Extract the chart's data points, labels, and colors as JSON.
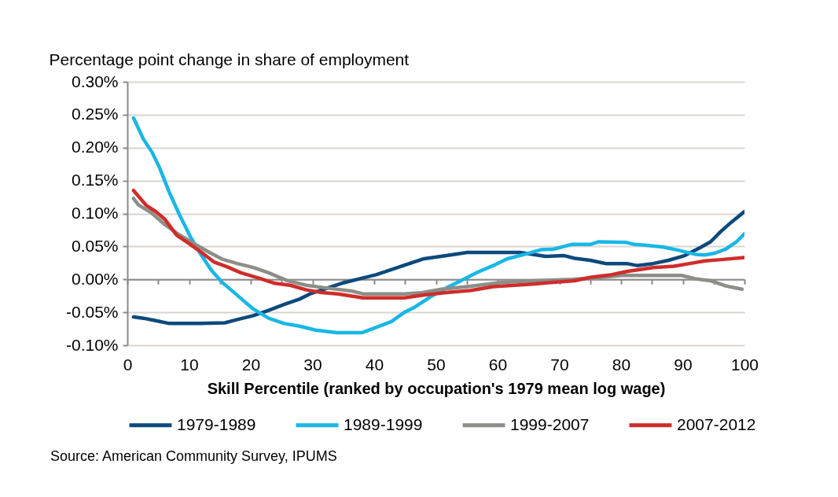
{
  "chart_data": {
    "type": "line",
    "ylabel": "Percentage point change in share of employment",
    "xlabel": "Skill Percentile (ranked by occupation's 1979 mean log wage)",
    "annotations": [
      "Source: American Community Survey, IPUMS"
    ],
    "xlim": [
      0,
      100
    ],
    "xticks": [
      0,
      {
        "value": 5,
        "label": null
      },
      10,
      {
        "value": 15,
        "label": null
      },
      20,
      {
        "value": 25,
        "label": null
      },
      30,
      {
        "value": 35,
        "label": null
      },
      40,
      {
        "value": 45,
        "label": null
      },
      50,
      {
        "value": 55,
        "label": null
      },
      60,
      {
        "value": 65,
        "label": null
      },
      70,
      {
        "value": 75,
        "label": null
      },
      80,
      {
        "value": 85,
        "label": null
      },
      90,
      {
        "value": 95,
        "label": null
      },
      100
    ],
    "ylim": [
      -0.1,
      0.3
    ],
    "yticks": [
      {
        "value": -0.1,
        "label": "-0.10%"
      },
      {
        "value": -0.05,
        "label": "-0.05%"
      },
      {
        "value": 0,
        "label": "0.00%"
      },
      {
        "value": 0.05,
        "label": "0.05%"
      },
      {
        "value": 0.1,
        "label": "0.10%"
      },
      {
        "value": 0.15,
        "label": "0.15%"
      },
      {
        "value": 0.2,
        "label": "0.20%"
      },
      {
        "value": 0.25,
        "label": "0.25%"
      },
      {
        "value": 0.3,
        "label": "0.30%"
      }
    ],
    "grid": "y",
    "legend": "bottom",
    "line_style": "solid",
    "series": [
      {
        "name": "1979-1989",
        "color": "#0d4a7c",
        "x": [
          1,
          2.6,
          4.3,
          6.8,
          11.1,
          15.8,
          17.8,
          20.4,
          22.9,
          25.4,
          27.9,
          29.6,
          32.2,
          34.7,
          37.7,
          40.3,
          44.1,
          47.9,
          51.7,
          55.1,
          63.6,
          67.8,
          70.8,
          72.5,
          75.0,
          77.5,
          80.9,
          82.6,
          85.2,
          87.7,
          90.3,
          92.8,
          94.5,
          96.2,
          97.9,
          100
        ],
        "values": [
          -0.057,
          -0.059,
          -0.062,
          -0.067,
          -0.067,
          -0.066,
          -0.061,
          -0.055,
          -0.047,
          -0.038,
          -0.03,
          -0.022,
          -0.014,
          -0.006,
          0.001,
          0.007,
          0.019,
          0.031,
          0.036,
          0.041,
          0.041,
          0.035,
          0.036,
          0.032,
          0.029,
          0.024,
          0.024,
          0.021,
          0.024,
          0.029,
          0.036,
          0.048,
          0.057,
          0.073,
          0.087,
          0.103
        ]
      },
      {
        "name": "1989-1999",
        "color": "#19b7e5",
        "x": [
          1,
          2.6,
          4.0,
          5.2,
          6.8,
          8.5,
          10.2,
          11.9,
          13.6,
          15.3,
          17.8,
          20.4,
          22.9,
          25.4,
          27.9,
          30.5,
          33.9,
          38.0,
          40.3,
          42.8,
          44.9,
          46.6,
          49.2,
          51.7,
          54.3,
          56.8,
          59.3,
          61.5,
          64.4,
          67.0,
          69.1,
          72.0,
          75.0,
          76.3,
          80.9,
          82.2,
          83.9,
          86.9,
          89.4,
          92.0,
          93.6,
          95.3,
          97.0,
          98.7,
          100
        ],
        "values": [
          0.245,
          0.213,
          0.193,
          0.17,
          0.132,
          0.097,
          0.065,
          0.038,
          0.014,
          -0.004,
          -0.024,
          -0.045,
          -0.059,
          -0.067,
          -0.071,
          -0.077,
          -0.081,
          -0.081,
          -0.073,
          -0.064,
          -0.05,
          -0.042,
          -0.026,
          -0.013,
          -0.001,
          0.011,
          0.021,
          0.031,
          0.038,
          0.045,
          0.046,
          0.053,
          0.053,
          0.057,
          0.056,
          0.053,
          0.052,
          0.049,
          0.044,
          0.038,
          0.037,
          0.04,
          0.046,
          0.057,
          0.069
        ]
      },
      {
        "name": "1999-2007",
        "color": "#8d8e88",
        "x": [
          1,
          1.8,
          3.9,
          6.1,
          8.2,
          10.3,
          12.9,
          15.3,
          17.8,
          20.4,
          22.9,
          25.9,
          29.0,
          32.2,
          36.5,
          38.2,
          44.9,
          47.9,
          50.9,
          55.1,
          60.2,
          63.6,
          72.0,
          76.7,
          80.1,
          89.8,
          92.0,
          94.5,
          97.0,
          99.6
        ],
        "values": [
          0.123,
          0.113,
          0.101,
          0.083,
          0.069,
          0.057,
          0.043,
          0.031,
          0.024,
          0.018,
          0.01,
          -0.002,
          -0.009,
          -0.013,
          -0.018,
          -0.022,
          -0.022,
          -0.02,
          -0.015,
          -0.011,
          -0.005,
          -0.003,
          0.0,
          0.003,
          0.006,
          0.006,
          0.001,
          -0.002,
          -0.01,
          -0.015
        ]
      },
      {
        "name": "2007-2012",
        "color": "#cf2d2a",
        "x": [
          1,
          2.0,
          3.1,
          4.6,
          6.1,
          8.0,
          9.9,
          12.0,
          14.1,
          16.2,
          18.4,
          21.3,
          23.9,
          26.4,
          29.0,
          31.5,
          34.1,
          38.2,
          44.9,
          47.9,
          51.7,
          55.5,
          59.3,
          62.7,
          66.1,
          68.2,
          72.5,
          75.0,
          78.4,
          80.9,
          85.2,
          88.6,
          91.1,
          93.6,
          96.2,
          100
        ],
        "values": [
          0.135,
          0.124,
          0.112,
          0.103,
          0.091,
          0.067,
          0.055,
          0.041,
          0.026,
          0.019,
          0.01,
          0.002,
          -0.006,
          -0.009,
          -0.016,
          -0.02,
          -0.022,
          -0.028,
          -0.028,
          -0.024,
          -0.02,
          -0.017,
          -0.011,
          -0.009,
          -0.007,
          -0.005,
          -0.002,
          0.003,
          0.007,
          0.012,
          0.018,
          0.02,
          0.024,
          0.028,
          0.03,
          0.033
        ]
      }
    ]
  }
}
